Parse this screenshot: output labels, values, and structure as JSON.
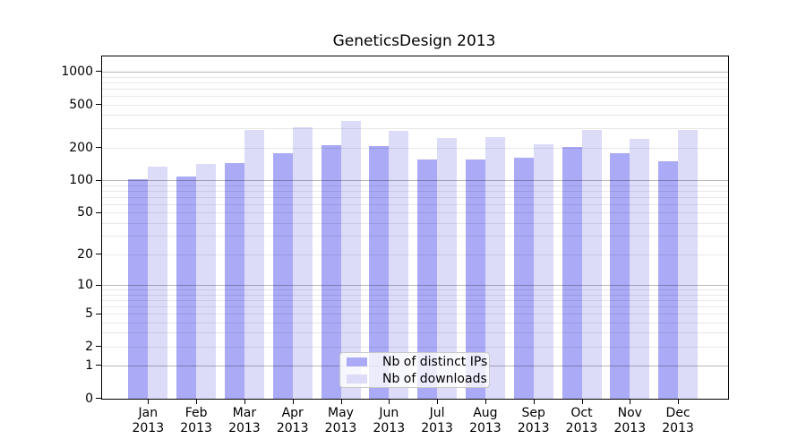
{
  "chart_data": {
    "type": "bar",
    "title": "GeneticsDesign 2013",
    "categories": [
      "Jan",
      "Feb",
      "Mar",
      "Apr",
      "May",
      "Jun",
      "Jul",
      "Aug",
      "Sep",
      "Oct",
      "Nov",
      "Dec"
    ],
    "x_tick_year": "2013",
    "series": [
      {
        "name": "Nb of distinct IPs",
        "color": "#aaaaf7",
        "values": [
          102,
          109,
          143,
          177,
          210,
          207,
          155,
          154,
          162,
          201,
          176,
          150
        ]
      },
      {
        "name": "Nb of downloads",
        "color": "#dcdcf9",
        "values": [
          134,
          141,
          293,
          309,
          350,
          288,
          247,
          252,
          213,
          292,
          241,
          293
        ]
      }
    ],
    "y_axis": {
      "scale": "log10(value+1)",
      "range": [
        0,
        1000
      ],
      "ticks": [
        0,
        1,
        2,
        5,
        10,
        20,
        50,
        100,
        200,
        500,
        1000
      ],
      "minor_gridlines": [
        2,
        3,
        4,
        5,
        6,
        7,
        8,
        9,
        20,
        30,
        40,
        50,
        60,
        70,
        80,
        90,
        200,
        300,
        400,
        500,
        600,
        700,
        800,
        900
      ],
      "major_gridlines": [
        1,
        10,
        100,
        1000
      ]
    },
    "grid": "horizontal",
    "legend": {
      "position": "inside-bottom-center",
      "entries": [
        "Nb of distinct IPs",
        "Nb of downloads"
      ]
    },
    "colors": {
      "axis": "#000000",
      "minor_grid": "rgba(0,0,0,0.09)",
      "major_grid": "rgba(0,0,0,0.28)",
      "background": "#ffffff"
    }
  }
}
